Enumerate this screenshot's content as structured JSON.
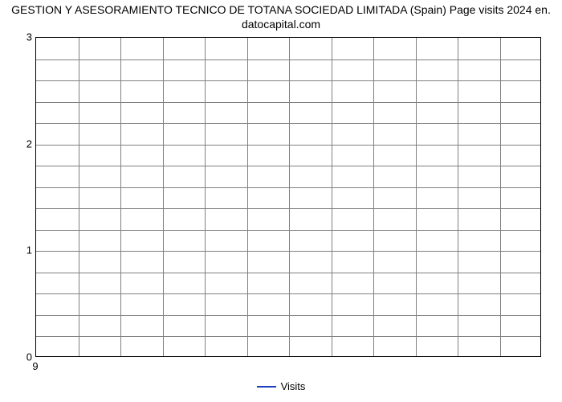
{
  "chart": {
    "type": "line",
    "title_line1": "GESTION Y ASESORAMIENTO TECNICO DE TOTANA SOCIEDAD LIMITADA (Spain) Page visits 2024 en.",
    "title_line2": "datocapital.com",
    "title_fontsize": 14,
    "title_color": "#000000",
    "background_color": "#ffffff",
    "plot_border_color": "#000000",
    "grid_color": "#808080",
    "grid_on": true,
    "y": {
      "min": 0,
      "max": 3,
      "major_ticks": [
        0,
        1,
        2,
        3
      ],
      "minor_steps": 5,
      "label_fontsize": 13
    },
    "x": {
      "ticks": [
        9
      ],
      "tick_label": "9",
      "num_vertical_gridlines": 11,
      "label_fontsize": 13
    },
    "series": [
      {
        "name": "Visits",
        "color": "#1f3fb8",
        "values": []
      }
    ],
    "legend": {
      "label": "Visits",
      "swatch_color": "#1f3fb8",
      "fontsize": 13
    }
  }
}
